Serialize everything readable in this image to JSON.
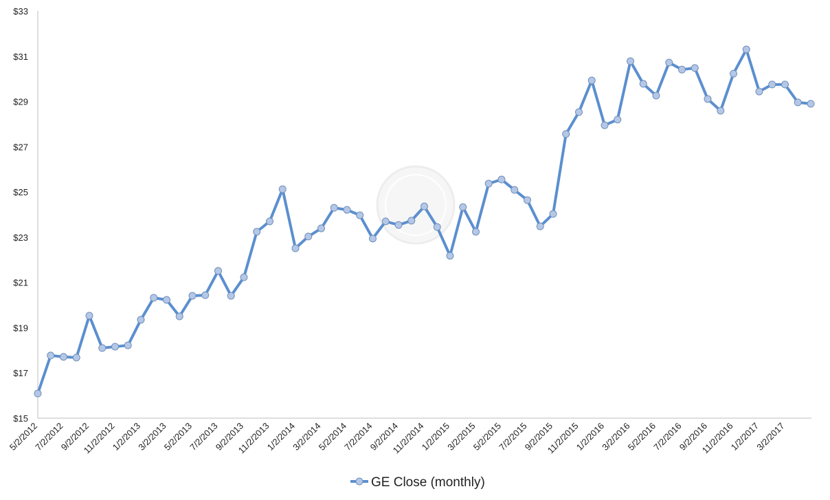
{
  "chart_data": {
    "type": "line",
    "categories": [
      "5/2/2012",
      null,
      "7/2/2012",
      null,
      "9/2/2012",
      null,
      "11/2/2012",
      null,
      "1/2/2013",
      null,
      "3/2/2013",
      null,
      "5/2/2013",
      null,
      "7/2/2013",
      null,
      "9/2/2013",
      null,
      "11/2/2013",
      null,
      "1/2/2014",
      null,
      "3/2/2014",
      null,
      "5/2/2014",
      null,
      "7/2/2014",
      null,
      "9/2/2014",
      null,
      "11/2/2014",
      null,
      "1/2/2015",
      null,
      "3/2/2015",
      null,
      "5/2/2015",
      null,
      "7/2/2015",
      null,
      "9/2/2015",
      null,
      "11/2/2015",
      null,
      "1/2/2016",
      null,
      "3/2/2016",
      null,
      "5/2/2016",
      null,
      "7/2/2016",
      null,
      "9/2/2016",
      null,
      "11/2/2016",
      null,
      "1/2/2017",
      null,
      "3/2/2017",
      null,
      null
    ],
    "series": [
      {
        "name": "GE Close (monthly)",
        "color": "#5b8fcf",
        "marker_fill": "#b4c7e7",
        "values": [
          16.09,
          17.77,
          17.71,
          17.68,
          19.53,
          18.1,
          18.16,
          18.22,
          19.35,
          20.32,
          20.23,
          19.5,
          20.41,
          20.44,
          21.51,
          20.41,
          21.23,
          23.24,
          23.7,
          25.12,
          22.51,
          23.03,
          23.39,
          24.3,
          24.21,
          23.97,
          22.94,
          23.7,
          23.54,
          23.73,
          24.36,
          23.45,
          22.18,
          24.33,
          23.24,
          25.37,
          25.55,
          25.09,
          24.64,
          23.48,
          24.03,
          27.56,
          28.53,
          29.93,
          27.95,
          28.2,
          30.78,
          29.78,
          29.26,
          30.72,
          30.41,
          30.48,
          29.11,
          28.59,
          30.23,
          31.3,
          29.44,
          29.75,
          29.75,
          28.96,
          28.9
        ]
      }
    ],
    "ylim": [
      15,
      33
    ],
    "yticks": [
      {
        "value": 15,
        "label": "$15"
      },
      {
        "value": 17,
        "label": "$17"
      },
      {
        "value": 19,
        "label": "$19"
      },
      {
        "value": 21,
        "label": "$21"
      },
      {
        "value": 23,
        "label": "$23"
      },
      {
        "value": 25,
        "label": "$25"
      },
      {
        "value": 27,
        "label": "$27"
      },
      {
        "value": 29,
        "label": "$29"
      },
      {
        "value": 31,
        "label": "$31"
      },
      {
        "value": 33,
        "label": "$33"
      }
    ],
    "grid": false,
    "legend": "bottom"
  }
}
